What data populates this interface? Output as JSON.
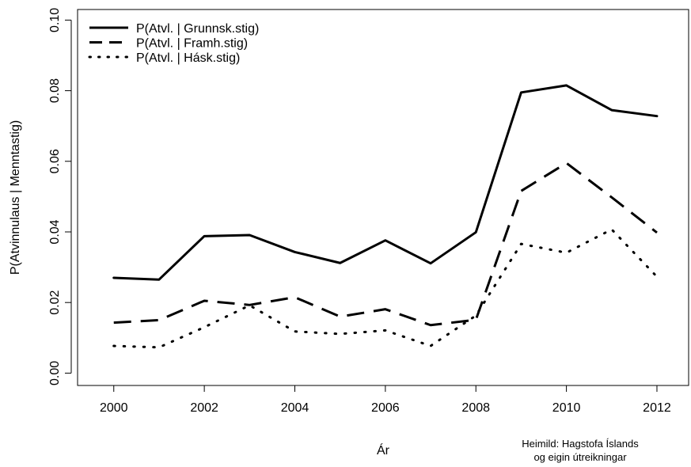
{
  "chart_data": {
    "type": "line",
    "title": "",
    "xlabel": "Ár",
    "ylabel": "P(Atvinnulaus | Menntastig)",
    "x": [
      2000,
      2001,
      2002,
      2003,
      2004,
      2005,
      2006,
      2007,
      2008,
      2009,
      2010,
      2011,
      2012
    ],
    "xlim": [
      1999.2,
      2012.7
    ],
    "ylim": [
      -0.0035,
      0.103
    ],
    "xticks": [
      2000,
      2002,
      2004,
      2006,
      2008,
      2010,
      2012
    ],
    "xtick_labels": [
      "2000",
      "2002",
      "2004",
      "2006",
      "2008",
      "2010",
      "2012"
    ],
    "yticks": [
      0.0,
      0.02,
      0.04,
      0.06,
      0.08,
      0.1
    ],
    "ytick_labels": [
      "0.00",
      "0.02",
      "0.04",
      "0.06",
      "0.08",
      "0.10"
    ],
    "grid": false,
    "legend_position": "top-left",
    "series": [
      {
        "name": "P(Atvl. | Grunnsk.stig)",
        "style": "solid",
        "color": "#000000",
        "values": [
          0.027,
          0.0265,
          0.0388,
          0.0391,
          0.0343,
          0.0312,
          0.0376,
          0.0311,
          0.0399,
          0.0795,
          0.0815,
          0.0745,
          0.0728
        ]
      },
      {
        "name": "P(Atvl. | Framh.stig)",
        "style": "dashed",
        "color": "#000000",
        "values": [
          0.0143,
          0.015,
          0.0205,
          0.0193,
          0.0215,
          0.016,
          0.0181,
          0.0136,
          0.0151,
          0.0516,
          0.0595,
          0.0498,
          0.0398
        ]
      },
      {
        "name": "P(Atvl. | Hásk.stig)",
        "style": "dotted",
        "color": "#000000",
        "values": [
          0.0077,
          0.0073,
          0.013,
          0.0192,
          0.0118,
          0.0111,
          0.0121,
          0.0077,
          0.0163,
          0.0366,
          0.0341,
          0.0407,
          0.0273
        ]
      }
    ],
    "annotation": [
      "Heimild: Hagstofa Íslands",
      "og eigin útreikningar"
    ]
  }
}
